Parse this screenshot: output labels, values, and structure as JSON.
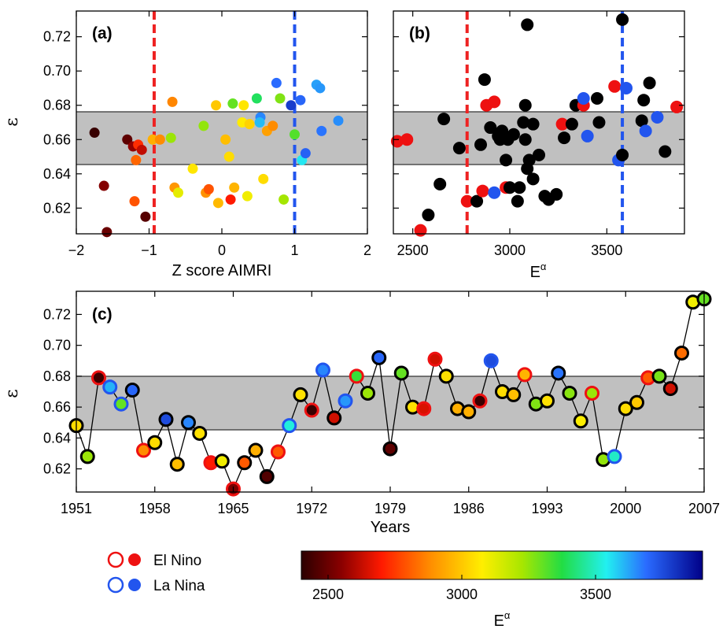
{
  "chart_data": [
    {
      "panel": "(a)",
      "type": "scatter",
      "xlabel": "Z score AIMRI",
      "ylabel": "ε",
      "xlim": [
        -2,
        2
      ],
      "ylim": [
        0.605,
        0.735
      ],
      "xticks": [
        "−2",
        "−1",
        "0",
        "1",
        "2"
      ],
      "yticks": [
        "0.62",
        "0.64",
        "0.66",
        "0.68",
        "0.70",
        "0.72"
      ],
      "band": [
        0.645,
        0.676
      ],
      "vlines": [
        {
          "x": -0.93,
          "color": "#ee2222"
        },
        {
          "x": 1.0,
          "color": "#2255ee"
        }
      ],
      "color_variable": "E^α",
      "points": [
        {
          "x": -1.75,
          "y": 0.664,
          "e": 2420
        },
        {
          "x": -1.62,
          "y": 0.633,
          "e": 2540
        },
        {
          "x": -1.58,
          "y": 0.606,
          "e": 2500
        },
        {
          "x": -1.3,
          "y": 0.66,
          "e": 2480
        },
        {
          "x": -1.22,
          "y": 0.656,
          "e": 2560
        },
        {
          "x": -1.18,
          "y": 0.648,
          "e": 2820
        },
        {
          "x": -1.2,
          "y": 0.624,
          "e": 2790
        },
        {
          "x": -1.15,
          "y": 0.657,
          "e": 2730
        },
        {
          "x": -1.1,
          "y": 0.654,
          "e": 2620
        },
        {
          "x": -1.05,
          "y": 0.615,
          "e": 2470
        },
        {
          "x": -0.95,
          "y": 0.66,
          "e": 2950
        },
        {
          "x": -0.85,
          "y": 0.66,
          "e": 2880
        },
        {
          "x": -0.68,
          "y": 0.682,
          "e": 2870
        },
        {
          "x": -0.7,
          "y": 0.661,
          "e": 3240
        },
        {
          "x": -0.65,
          "y": 0.632,
          "e": 2900
        },
        {
          "x": -0.6,
          "y": 0.629,
          "e": 3120
        },
        {
          "x": -0.4,
          "y": 0.643,
          "e": 3060
        },
        {
          "x": -0.25,
          "y": 0.668,
          "e": 3250
        },
        {
          "x": -0.22,
          "y": 0.629,
          "e": 2890
        },
        {
          "x": -0.18,
          "y": 0.631,
          "e": 2790
        },
        {
          "x": -0.08,
          "y": 0.68,
          "e": 3000
        },
        {
          "x": -0.05,
          "y": 0.623,
          "e": 2970
        },
        {
          "x": 0.05,
          "y": 0.66,
          "e": 2980
        },
        {
          "x": 0.1,
          "y": 0.65,
          "e": 3040
        },
        {
          "x": 0.12,
          "y": 0.625,
          "e": 2700
        },
        {
          "x": 0.15,
          "y": 0.681,
          "e": 3300
        },
        {
          "x": 0.17,
          "y": 0.632,
          "e": 2960
        },
        {
          "x": 0.28,
          "y": 0.67,
          "e": 3070
        },
        {
          "x": 0.3,
          "y": 0.68,
          "e": 3060
        },
        {
          "x": 0.38,
          "y": 0.669,
          "e": 3020
        },
        {
          "x": 0.35,
          "y": 0.627,
          "e": 3100
        },
        {
          "x": 0.48,
          "y": 0.684,
          "e": 3400
        },
        {
          "x": 0.53,
          "y": 0.673,
          "e": 3660
        },
        {
          "x": 0.52,
          "y": 0.67,
          "e": 3600
        },
        {
          "x": 0.57,
          "y": 0.637,
          "e": 3040
        },
        {
          "x": 0.62,
          "y": 0.665,
          "e": 2920
        },
        {
          "x": 0.7,
          "y": 0.668,
          "e": 2880
        },
        {
          "x": 0.75,
          "y": 0.693,
          "e": 3690
        },
        {
          "x": 0.8,
          "y": 0.684,
          "e": 3270
        },
        {
          "x": 0.85,
          "y": 0.625,
          "e": 3230
        },
        {
          "x": 0.95,
          "y": 0.68,
          "e": 3780
        },
        {
          "x": 1.0,
          "y": 0.663,
          "e": 3320
        },
        {
          "x": 1.08,
          "y": 0.683,
          "e": 3700
        },
        {
          "x": 1.1,
          "y": 0.648,
          "e": 3550
        },
        {
          "x": 1.15,
          "y": 0.652,
          "e": 3710
        },
        {
          "x": 1.3,
          "y": 0.692,
          "e": 3630
        },
        {
          "x": 1.35,
          "y": 0.69,
          "e": 3640
        },
        {
          "x": 1.37,
          "y": 0.665,
          "e": 3680
        },
        {
          "x": 1.6,
          "y": 0.671,
          "e": 3650
        }
      ]
    },
    {
      "panel": "(b)",
      "type": "scatter",
      "xlabel": "E",
      "xlabel_sup": "α",
      "xlim": [
        2400,
        3900
      ],
      "ylim": [
        0.605,
        0.735
      ],
      "xticks": [
        "2500",
        "3000",
        "3500"
      ],
      "band": [
        0.645,
        0.676
      ],
      "vlines": [
        {
          "x": 2780,
          "color": "#ee2222"
        },
        {
          "x": 3580,
          "color": "#2255ee"
        }
      ],
      "points": [
        {
          "x": 2420,
          "y": 0.659,
          "t": "elnino"
        },
        {
          "x": 2470,
          "y": 0.66,
          "t": "elnino"
        },
        {
          "x": 2540,
          "y": 0.607,
          "t": "elnino"
        },
        {
          "x": 2580,
          "y": 0.616,
          "t": "none"
        },
        {
          "x": 2640,
          "y": 0.634,
          "t": "none"
        },
        {
          "x": 2660,
          "y": 0.672,
          "t": "none"
        },
        {
          "x": 2740,
          "y": 0.655,
          "t": "none"
        },
        {
          "x": 2780,
          "y": 0.624,
          "t": "elnino"
        },
        {
          "x": 2830,
          "y": 0.624,
          "t": "none"
        },
        {
          "x": 2850,
          "y": 0.657,
          "t": "none"
        },
        {
          "x": 2860,
          "y": 0.63,
          "t": "elnino"
        },
        {
          "x": 2870,
          "y": 0.695,
          "t": "none"
        },
        {
          "x": 2880,
          "y": 0.68,
          "t": "elnino"
        },
        {
          "x": 2900,
          "y": 0.667,
          "t": "none"
        },
        {
          "x": 2920,
          "y": 0.682,
          "t": "elnino"
        },
        {
          "x": 2920,
          "y": 0.629,
          "t": "lanina"
        },
        {
          "x": 2940,
          "y": 0.662,
          "t": "none"
        },
        {
          "x": 2950,
          "y": 0.66,
          "t": "none"
        },
        {
          "x": 2960,
          "y": 0.665,
          "t": "none"
        },
        {
          "x": 2980,
          "y": 0.632,
          "t": "elnino"
        },
        {
          "x": 2980,
          "y": 0.648,
          "t": "none"
        },
        {
          "x": 2990,
          "y": 0.66,
          "t": "none"
        },
        {
          "x": 3000,
          "y": 0.632,
          "t": "none"
        },
        {
          "x": 3020,
          "y": 0.663,
          "t": "none"
        },
        {
          "x": 3040,
          "y": 0.624,
          "t": "none"
        },
        {
          "x": 3050,
          "y": 0.632,
          "t": "none"
        },
        {
          "x": 3070,
          "y": 0.67,
          "t": "none"
        },
        {
          "x": 3080,
          "y": 0.68,
          "t": "none"
        },
        {
          "x": 3080,
          "y": 0.66,
          "t": "none"
        },
        {
          "x": 3090,
          "y": 0.727,
          "t": "none"
        },
        {
          "x": 3090,
          "y": 0.643,
          "t": "none"
        },
        {
          "x": 3100,
          "y": 0.648,
          "t": "none"
        },
        {
          "x": 3120,
          "y": 0.637,
          "t": "none"
        },
        {
          "x": 3120,
          "y": 0.669,
          "t": "none"
        },
        {
          "x": 3150,
          "y": 0.651,
          "t": "none"
        },
        {
          "x": 3180,
          "y": 0.627,
          "t": "none"
        },
        {
          "x": 3200,
          "y": 0.625,
          "t": "none"
        },
        {
          "x": 3240,
          "y": 0.628,
          "t": "none"
        },
        {
          "x": 3270,
          "y": 0.669,
          "t": "elnino"
        },
        {
          "x": 3280,
          "y": 0.661,
          "t": "none"
        },
        {
          "x": 3320,
          "y": 0.669,
          "t": "none"
        },
        {
          "x": 3340,
          "y": 0.68,
          "t": "none"
        },
        {
          "x": 3380,
          "y": 0.68,
          "t": "elnino"
        },
        {
          "x": 3380,
          "y": 0.684,
          "t": "lanina"
        },
        {
          "x": 3400,
          "y": 0.662,
          "t": "lanina"
        },
        {
          "x": 3450,
          "y": 0.684,
          "t": "none"
        },
        {
          "x": 3460,
          "y": 0.67,
          "t": "none"
        },
        {
          "x": 3540,
          "y": 0.691,
          "t": "elnino"
        },
        {
          "x": 3560,
          "y": 0.648,
          "t": "lanina"
        },
        {
          "x": 3580,
          "y": 0.73,
          "t": "none"
        },
        {
          "x": 3580,
          "y": 0.651,
          "t": "none"
        },
        {
          "x": 3600,
          "y": 0.69,
          "t": "lanina"
        },
        {
          "x": 3680,
          "y": 0.671,
          "t": "none"
        },
        {
          "x": 3690,
          "y": 0.683,
          "t": "none"
        },
        {
          "x": 3700,
          "y": 0.665,
          "t": "lanina"
        },
        {
          "x": 3720,
          "y": 0.693,
          "t": "none"
        },
        {
          "x": 3760,
          "y": 0.673,
          "t": "lanina"
        },
        {
          "x": 3800,
          "y": 0.653,
          "t": "none"
        },
        {
          "x": 3860,
          "y": 0.679,
          "t": "elnino"
        }
      ]
    },
    {
      "panel": "(c)",
      "type": "line",
      "xlabel": "Years",
      "ylabel": "ε",
      "xlim": [
        1951,
        2007
      ],
      "ylim": [
        0.605,
        0.735
      ],
      "xticks": [
        "1951",
        "1958",
        "1965",
        "1972",
        "1979",
        "1986",
        "1993",
        "2000",
        "2007"
      ],
      "yticks": [
        "0.62",
        "0.64",
        "0.66",
        "0.68",
        "0.70",
        "0.72"
      ],
      "band": [
        0.645,
        0.676
      ],
      "points": [
        {
          "x": 1951,
          "y": 0.648,
          "e": 3040,
          "t": "none"
        },
        {
          "x": 1952,
          "y": 0.628,
          "e": 3240,
          "t": "none"
        },
        {
          "x": 1953,
          "y": 0.679,
          "e": 2430,
          "t": "elnino"
        },
        {
          "x": 1954,
          "y": 0.673,
          "e": 3610,
          "t": "lanina"
        },
        {
          "x": 1955,
          "y": 0.662,
          "e": 3300,
          "t": "lanina"
        },
        {
          "x": 1956,
          "y": 0.671,
          "e": 3700,
          "t": "none"
        },
        {
          "x": 1957,
          "y": 0.632,
          "e": 2880,
          "t": "elnino"
        },
        {
          "x": 1958,
          "y": 0.637,
          "e": 3040,
          "t": "none"
        },
        {
          "x": 1959,
          "y": 0.652,
          "e": 3750,
          "t": "none"
        },
        {
          "x": 1960,
          "y": 0.623,
          "e": 2980,
          "t": "none"
        },
        {
          "x": 1961,
          "y": 0.65,
          "e": 3660,
          "t": "none"
        },
        {
          "x": 1962,
          "y": 0.643,
          "e": 3050,
          "t": "none"
        },
        {
          "x": 1963,
          "y": 0.624,
          "e": 2700,
          "t": "elnino"
        },
        {
          "x": 1964,
          "y": 0.625,
          "e": 3100,
          "t": "none"
        },
        {
          "x": 1965,
          "y": 0.607,
          "e": 2520,
          "t": "elnino"
        },
        {
          "x": 1966,
          "y": 0.624,
          "e": 2800,
          "t": "none"
        },
        {
          "x": 1967,
          "y": 0.632,
          "e": 2950,
          "t": "none"
        },
        {
          "x": 1968,
          "y": 0.615,
          "e": 2460,
          "t": "none"
        },
        {
          "x": 1969,
          "y": 0.631,
          "e": 2800,
          "t": "elnino"
        },
        {
          "x": 1970,
          "y": 0.648,
          "e": 3520,
          "t": "lanina"
        },
        {
          "x": 1971,
          "y": 0.668,
          "e": 3050,
          "t": "none"
        },
        {
          "x": 1972,
          "y": 0.658,
          "e": 2420,
          "t": "elnino"
        },
        {
          "x": 1973,
          "y": 0.684,
          "e": 3660,
          "t": "lanina"
        },
        {
          "x": 1974,
          "y": 0.653,
          "e": 2640,
          "t": "none"
        },
        {
          "x": 1975,
          "y": 0.664,
          "e": 3640,
          "t": "lanina"
        },
        {
          "x": 1976,
          "y": 0.68,
          "e": 3350,
          "t": "elnino"
        },
        {
          "x": 1977,
          "y": 0.669,
          "e": 3240,
          "t": "none"
        },
        {
          "x": 1978,
          "y": 0.692,
          "e": 3700,
          "t": "none"
        },
        {
          "x": 1979,
          "y": 0.633,
          "e": 2480,
          "t": "none"
        },
        {
          "x": 1980,
          "y": 0.682,
          "e": 3300,
          "t": "none"
        },
        {
          "x": 1981,
          "y": 0.66,
          "e": 3050,
          "t": "none"
        },
        {
          "x": 1982,
          "y": 0.659,
          "e": 2650,
          "t": "elnino"
        },
        {
          "x": 1983,
          "y": 0.691,
          "e": 2640,
          "t": "elnino"
        },
        {
          "x": 1984,
          "y": 0.68,
          "e": 3050,
          "t": "none"
        },
        {
          "x": 1985,
          "y": 0.659,
          "e": 2950,
          "t": "none"
        },
        {
          "x": 1986,
          "y": 0.657,
          "e": 2950,
          "t": "none"
        },
        {
          "x": 1987,
          "y": 0.664,
          "e": 2420,
          "t": "elnino"
        },
        {
          "x": 1988,
          "y": 0.69,
          "e": 3750,
          "t": "lanina"
        },
        {
          "x": 1989,
          "y": 0.67,
          "e": 3040,
          "t": "none"
        },
        {
          "x": 1990,
          "y": 0.668,
          "e": 2980,
          "t": "none"
        },
        {
          "x": 1991,
          "y": 0.681,
          "e": 2960,
          "t": "elnino"
        },
        {
          "x": 1992,
          "y": 0.662,
          "e": 3270,
          "t": "none"
        },
        {
          "x": 1993,
          "y": 0.664,
          "e": 3050,
          "t": "none"
        },
        {
          "x": 1994,
          "y": 0.682,
          "e": 3680,
          "t": "none"
        },
        {
          "x": 1995,
          "y": 0.669,
          "e": 3260,
          "t": "none"
        },
        {
          "x": 1996,
          "y": 0.651,
          "e": 3080,
          "t": "none"
        },
        {
          "x": 1997,
          "y": 0.669,
          "e": 3240,
          "t": "elnino"
        },
        {
          "x": 1998,
          "y": 0.626,
          "e": 3250,
          "t": "none"
        },
        {
          "x": 1999,
          "y": 0.628,
          "e": 3500,
          "t": "lanina"
        },
        {
          "x": 2000,
          "y": 0.659,
          "e": 3040,
          "t": "none"
        },
        {
          "x": 2001,
          "y": 0.663,
          "e": 3000,
          "t": "none"
        },
        {
          "x": 2002,
          "y": 0.679,
          "e": 2800,
          "t": "elnino"
        },
        {
          "x": 2003,
          "y": 0.68,
          "e": 3280,
          "t": "none"
        },
        {
          "x": 2004,
          "y": 0.672,
          "e": 2640,
          "t": "none"
        },
        {
          "x": 2005,
          "y": 0.695,
          "e": 2830,
          "t": "none"
        },
        {
          "x": 2006,
          "y": 0.728,
          "e": 3100,
          "t": "none"
        },
        {
          "x": 2007,
          "y": 0.73,
          "e": 3300,
          "t": "none"
        }
      ]
    }
  ],
  "legend": {
    "elnino_label": "El Nino",
    "lanina_label": "La Nina",
    "elnino_color": "#ee1111",
    "lanina_color": "#2255ee"
  },
  "colorbar": {
    "min": 2400,
    "max": 3900,
    "ticks": [
      "2500",
      "3000",
      "3500"
    ],
    "tick_values": [
      2500,
      3000,
      3500
    ],
    "label": "E",
    "label_sup": "α",
    "colormap": "jet-like: dark red → red → orange → yellow → green → cyan → blue → dark blue"
  },
  "colors": {
    "band": "#c0c0c0",
    "marker_neutral": "#000000"
  }
}
